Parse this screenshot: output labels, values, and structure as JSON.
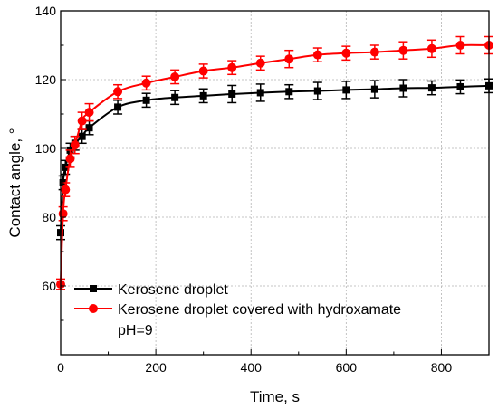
{
  "chart_data": {
    "type": "line",
    "xlabel": "Time, s",
    "ylabel": "Contact angle, °",
    "xlim": [
      0,
      900
    ],
    "ylim": [
      40,
      140
    ],
    "xticks": [
      0,
      200,
      400,
      600,
      800
    ],
    "yticks": [
      60,
      80,
      100,
      120,
      140
    ],
    "grid": true,
    "legend_position": "bottom-left",
    "annotation": "pH=9",
    "series": [
      {
        "name": "Kerosene droplet",
        "color": "#000000",
        "marker": "square",
        "x": [
          0,
          5,
          10,
          20,
          30,
          45,
          60,
          120,
          180,
          240,
          300,
          360,
          420,
          480,
          540,
          600,
          660,
          720,
          780,
          840,
          900
        ],
        "y": [
          75.5,
          90,
          94.5,
          99.5,
          101.5,
          103.5,
          106,
          112,
          114,
          114.8,
          115.3,
          115.8,
          116.2,
          116.5,
          116.7,
          117,
          117.2,
          117.5,
          117.6,
          117.9,
          118.2
        ],
        "err": [
          2,
          2,
          2,
          2,
          2,
          2,
          2,
          2,
          2,
          2,
          2,
          2.5,
          2.5,
          2,
          2.5,
          2.5,
          2.5,
          2.5,
          2,
          2,
          2
        ]
      },
      {
        "name": "Kerosene droplet covered with hydroxamate",
        "color": "#ff0000",
        "marker": "circle",
        "x": [
          0,
          5,
          10,
          20,
          30,
          45,
          60,
          120,
          180,
          240,
          300,
          360,
          420,
          480,
          540,
          600,
          660,
          720,
          780,
          840,
          900
        ],
        "y": [
          60.5,
          81,
          88,
          97,
          101,
          108,
          110.5,
          116.5,
          119,
          120.8,
          122.5,
          123.5,
          124.8,
          126,
          127.2,
          127.7,
          128,
          128.5,
          129,
          130,
          130
        ],
        "err": [
          1.5,
          2,
          2,
          2.5,
          2.5,
          2.5,
          2.5,
          2,
          2,
          2,
          2,
          2,
          2,
          2.5,
          2,
          2,
          2,
          2.5,
          2.5,
          2.5,
          2.5
        ]
      }
    ]
  }
}
